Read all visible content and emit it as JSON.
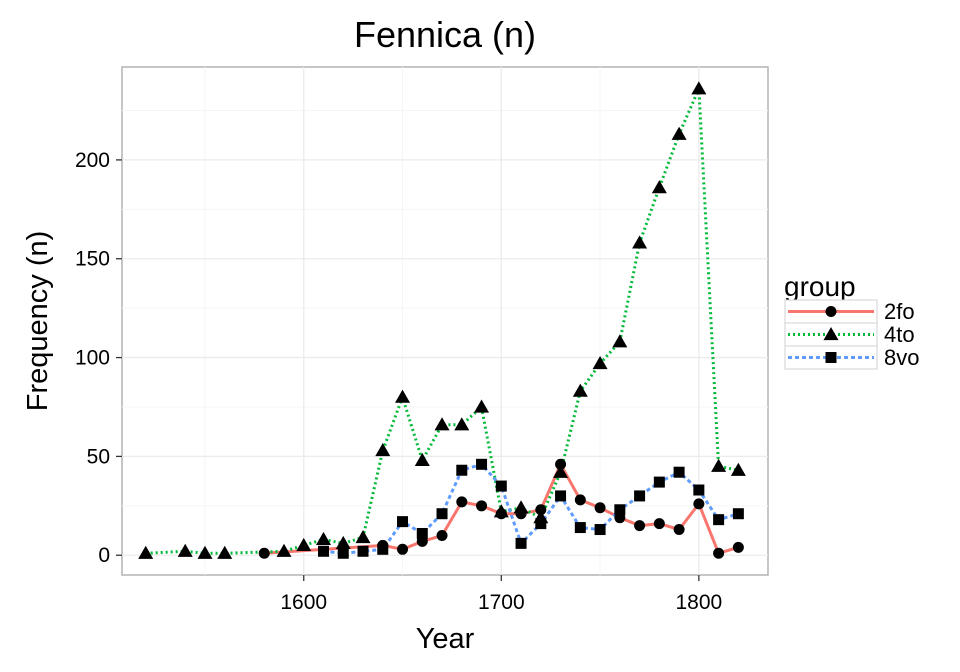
{
  "chart_data": {
    "type": "line",
    "title": "Fennica (n)",
    "xlabel": "Year",
    "ylabel": "Frequency (n)",
    "xlim": [
      1508,
      1835
    ],
    "ylim": [
      -10,
      247
    ],
    "xticks": [
      1600,
      1700,
      1800
    ],
    "yticks": [
      0,
      50,
      100,
      150,
      200
    ],
    "grid": true,
    "legend": {
      "title": "group",
      "position": "right"
    },
    "series": [
      {
        "name": "2fo",
        "color": "#f8766d",
        "dash": "solid",
        "marker": "circle",
        "points": [
          [
            1580,
            1
          ],
          [
            1640,
            5
          ],
          [
            1650,
            3
          ],
          [
            1660,
            7
          ],
          [
            1670,
            10
          ],
          [
            1680,
            27
          ],
          [
            1690,
            25
          ],
          [
            1700,
            21
          ],
          [
            1710,
            21
          ],
          [
            1720,
            23
          ],
          [
            1730,
            46
          ],
          [
            1740,
            28
          ],
          [
            1750,
            24
          ],
          [
            1760,
            19
          ],
          [
            1770,
            15
          ],
          [
            1780,
            16
          ],
          [
            1790,
            13
          ],
          [
            1800,
            26
          ],
          [
            1810,
            1
          ],
          [
            1820,
            4
          ]
        ]
      },
      {
        "name": "4to",
        "color": "#00ba38",
        "dash": "dotted",
        "marker": "triangle",
        "points": [
          [
            1520,
            1
          ],
          [
            1540,
            2
          ],
          [
            1550,
            1
          ],
          [
            1560,
            1
          ],
          [
            1590,
            2
          ],
          [
            1600,
            5
          ],
          [
            1610,
            8
          ],
          [
            1620,
            6
          ],
          [
            1630,
            9
          ],
          [
            1640,
            53
          ],
          [
            1650,
            80
          ],
          [
            1660,
            48
          ],
          [
            1670,
            66
          ],
          [
            1680,
            66
          ],
          [
            1690,
            75
          ],
          [
            1700,
            22
          ],
          [
            1710,
            24
          ],
          [
            1720,
            19
          ],
          [
            1730,
            42
          ],
          [
            1740,
            83
          ],
          [
            1750,
            97
          ],
          [
            1760,
            108
          ],
          [
            1770,
            158
          ],
          [
            1780,
            186
          ],
          [
            1790,
            213
          ],
          [
            1800,
            236
          ],
          [
            1810,
            45
          ],
          [
            1820,
            43
          ]
        ]
      },
      {
        "name": "8vo",
        "color": "#619cff",
        "dash": "dashed",
        "marker": "square",
        "points": [
          [
            1610,
            2
          ],
          [
            1620,
            1
          ],
          [
            1630,
            2
          ],
          [
            1640,
            3
          ],
          [
            1650,
            17
          ],
          [
            1660,
            11
          ],
          [
            1670,
            21
          ],
          [
            1680,
            43
          ],
          [
            1690,
            46
          ],
          [
            1700,
            35
          ],
          [
            1710,
            6
          ],
          [
            1720,
            16
          ],
          [
            1730,
            30
          ],
          [
            1740,
            14
          ],
          [
            1750,
            13
          ],
          [
            1760,
            23
          ],
          [
            1770,
            30
          ],
          [
            1780,
            37
          ],
          [
            1790,
            42
          ],
          [
            1800,
            33
          ],
          [
            1810,
            18
          ],
          [
            1820,
            21
          ]
        ]
      }
    ]
  }
}
